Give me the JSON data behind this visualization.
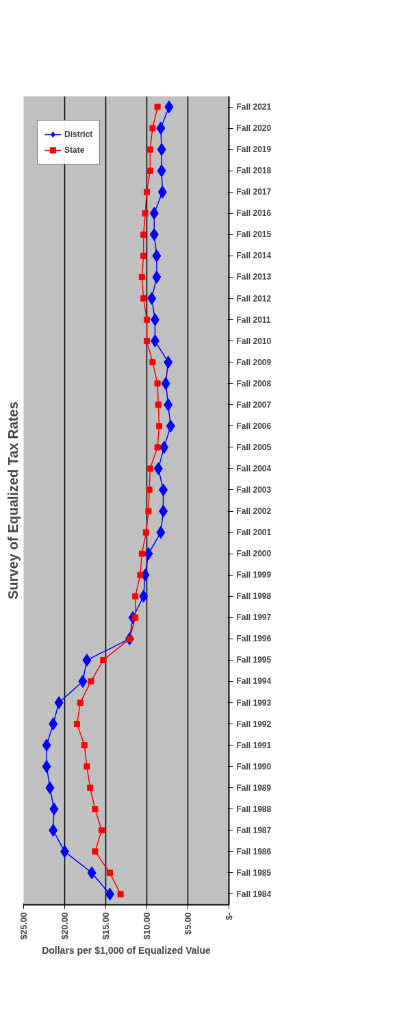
{
  "chart_data": {
    "type": "line",
    "orientation": "horizontal",
    "title": "Survey of Equalized Tax Rates",
    "xlabel": "Dollars per $1,000 of Equalized Value",
    "categories": [
      "Fall 2021",
      "Fall 2020",
      "Fall 2019",
      "Fall 2018",
      "Fall 2017",
      "Fall 2016",
      "Fall 2015",
      "Fall 2014",
      "Fall 2013",
      "Fall 2012",
      "Fall 2011",
      "Fall 2010",
      "Fall 2009",
      "Fall 2008",
      "Fall 2007",
      "Fall 2006",
      "Fall 2005",
      "Fall 2004",
      "Fall 2003",
      "Fall 2002",
      "Fall 2001",
      "Fall 2000",
      "Fall 1999",
      "Fall 1998",
      "Fall 1997",
      "Fall 1996",
      "Fall 1995",
      "Fall 1994",
      "Fall 1993",
      "Fall 1992",
      "Fall 1991",
      "Fall 1990",
      "Fall 1989",
      "Fall 1988",
      "Fall 1987",
      "Fall 1986",
      "Fall 1985",
      "Fall 1984"
    ],
    "series": [
      {
        "name": "District",
        "color": "#0000ff",
        "marker": "diamond",
        "values": [
          7.3,
          8.3,
          8.2,
          8.2,
          8.1,
          9.1,
          9.1,
          8.8,
          8.8,
          9.4,
          9.0,
          9.0,
          7.4,
          7.7,
          7.4,
          7.1,
          7.9,
          8.6,
          8.0,
          8.0,
          8.3,
          9.8,
          10.2,
          10.4,
          11.7,
          12.1,
          17.3,
          17.8,
          20.7,
          21.4,
          22.2,
          22.2,
          21.8,
          21.3,
          21.4,
          20.0,
          16.7,
          14.5
        ]
      },
      {
        "name": "State",
        "color": "#ff0000",
        "marker": "square",
        "values": [
          8.7,
          9.3,
          9.6,
          9.6,
          10.0,
          10.2,
          10.4,
          10.4,
          10.6,
          10.4,
          10.0,
          10.0,
          9.3,
          8.7,
          8.6,
          8.5,
          8.7,
          9.6,
          9.7,
          9.8,
          10.1,
          10.6,
          10.8,
          11.4,
          11.4,
          12.1,
          15.3,
          16.8,
          18.1,
          18.5,
          17.6,
          17.3,
          16.9,
          16.3,
          15.5,
          16.3,
          14.5,
          13.2
        ]
      }
    ],
    "xlim": [
      25,
      0
    ],
    "xticks": [
      {
        "value": 25,
        "label": "$25.00"
      },
      {
        "value": 20,
        "label": "$20.00"
      },
      {
        "value": 15,
        "label": "$15.00"
      },
      {
        "value": 10,
        "label": "$10.00"
      },
      {
        "value": 5,
        "label": "$5.00"
      },
      {
        "value": 0,
        "label": "$-"
      }
    ],
    "grid": "x",
    "legend": "top left",
    "line_style": "solid"
  }
}
